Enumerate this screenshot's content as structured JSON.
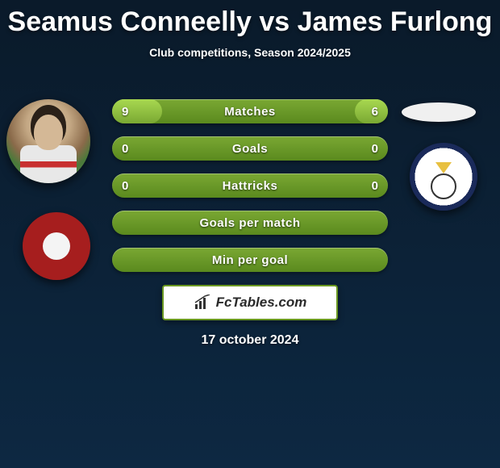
{
  "title": "Seamus Conneelly vs James Furlong",
  "subtitle": "Club competitions, Season 2024/2025",
  "date": "17 october 2024",
  "footer_brand": "FcTables.com",
  "colors": {
    "bar_base": "#5a8a1e",
    "bar_fill": "#7aa833",
    "background_top": "#0a1a2a",
    "background_bottom": "#0d2842",
    "footer_border": "#6a9820",
    "text": "#ffffff"
  },
  "bars": [
    {
      "label": "Matches",
      "left": "9",
      "right": "6",
      "left_pct": 18,
      "right_pct": 12
    },
    {
      "label": "Goals",
      "left": "0",
      "right": "0",
      "left_pct": 0,
      "right_pct": 0
    },
    {
      "label": "Hattricks",
      "left": "0",
      "right": "0",
      "left_pct": 0,
      "right_pct": 0
    },
    {
      "label": "Goals per match",
      "left": "",
      "right": "",
      "left_pct": 0,
      "right_pct": 0
    },
    {
      "label": "Min per goal",
      "left": "",
      "right": "",
      "left_pct": 0,
      "right_pct": 0
    }
  ]
}
